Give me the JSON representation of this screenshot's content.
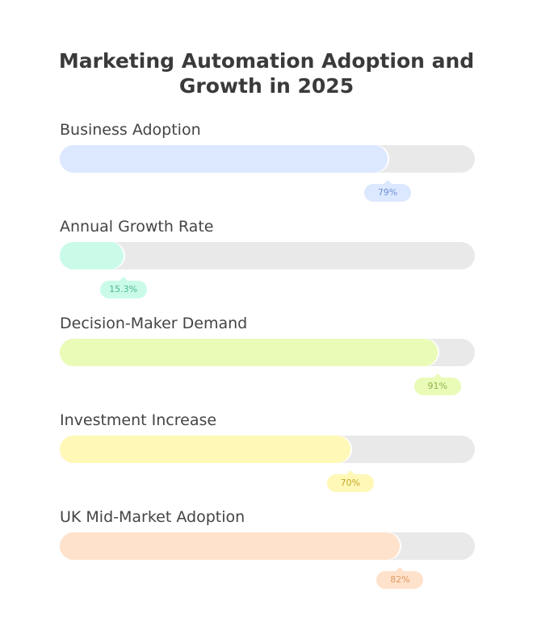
{
  "chart_data": {
    "type": "bar",
    "orientation": "horizontal",
    "title": "Marketing Automation Adoption and Growth in 2025",
    "xlim": [
      0,
      100
    ],
    "unit": "%",
    "categories": [
      "Business Adoption",
      "Annual Growth Rate",
      "Decision-Maker Demand",
      "Investment Increase",
      "UK Mid-Market Adoption"
    ],
    "values": [
      79,
      15.3,
      91,
      70,
      82
    ],
    "value_labels": [
      "79%",
      "15.3%",
      "91%",
      "70%",
      "82%"
    ],
    "colors": [
      "#dce8ff",
      "#c9fbe8",
      "#e9fbb7",
      "#fff8b6",
      "#ffe2cc"
    ],
    "label_colors": [
      "#6e8fd6",
      "#4fb790",
      "#8fb24a",
      "#c4a72a",
      "#e09a62"
    ],
    "track_color": "#e9e9e9",
    "grid": false,
    "legend": "none"
  }
}
